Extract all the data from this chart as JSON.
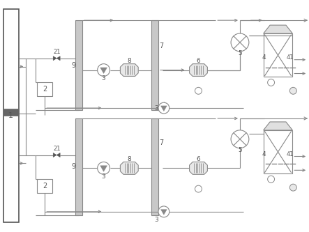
{
  "lc": "#888888",
  "dc": "#555555",
  "fig_width": 4.43,
  "fig_height": 3.33,
  "dpi": 100
}
